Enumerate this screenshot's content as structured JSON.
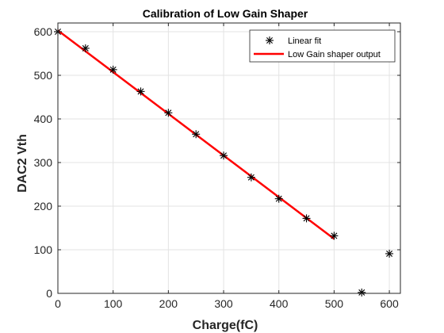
{
  "chart_data": {
    "type": "line",
    "title": "Calibration of Low Gain Shaper",
    "xlabel": "Charge(fC)",
    "ylabel": "DAC2 Vth",
    "xlim": [
      0,
      620
    ],
    "ylim": [
      0,
      620
    ],
    "xticks": [
      0,
      100,
      200,
      300,
      400,
      500,
      600
    ],
    "yticks": [
      0,
      100,
      200,
      300,
      400,
      500,
      600
    ],
    "xtick_labels": [
      "0",
      "100",
      "200",
      "300",
      "400",
      "500",
      "600"
    ],
    "ytick_labels": [
      "0",
      "100",
      "200",
      "300",
      "400",
      "500",
      "600"
    ],
    "grid": true,
    "legend_position": "top-right",
    "series": [
      {
        "name": "Linear fit",
        "marker": "asterisk",
        "color": "#000000",
        "x": [
          0,
          50,
          100,
          150,
          200,
          250,
          300,
          350,
          400,
          450,
          500,
          550,
          600
        ],
        "y": [
          600,
          562,
          513,
          463,
          414,
          365,
          316,
          266,
          217,
          172,
          132,
          2,
          91
        ]
      },
      {
        "name": "Low Gain shaper output",
        "line": "solid",
        "color": "#ff0000",
        "x": [
          0,
          500
        ],
        "y": [
          603,
          125
        ]
      }
    ]
  }
}
